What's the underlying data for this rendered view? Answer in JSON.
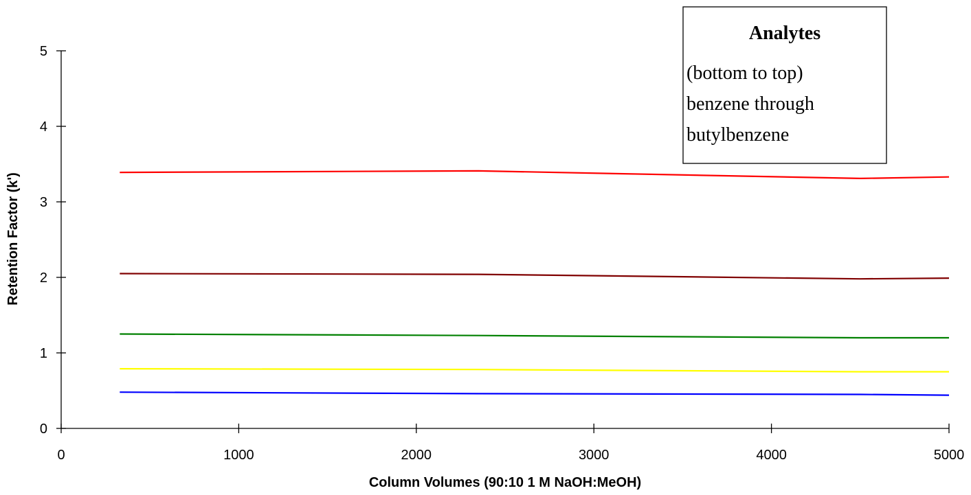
{
  "chart_data": {
    "type": "line",
    "xlabel": "Column Volumes (90:10 1 M NaOH:MeOH)",
    "ylabel": "Retention Factor (k')",
    "xlim": [
      0,
      5000
    ],
    "ylim": [
      0,
      5
    ],
    "x_ticks": [
      0,
      1000,
      2000,
      3000,
      4000,
      5000
    ],
    "y_ticks": [
      0,
      1,
      2,
      3,
      4,
      5
    ],
    "grid": false,
    "legend_placement": "top-right",
    "legend": {
      "title": "Analytes",
      "lines": [
        "(bottom to top)",
        "benzene through",
        "butylbenzene"
      ]
    },
    "series": [
      {
        "color": "#0000ff",
        "x": [
          330,
          2350,
          4500,
          5000
        ],
        "y": [
          0.48,
          0.46,
          0.45,
          0.44
        ]
      },
      {
        "color": "#ffff00",
        "x": [
          330,
          2350,
          4500,
          5000
        ],
        "y": [
          0.79,
          0.78,
          0.75,
          0.75
        ]
      },
      {
        "color": "#008000",
        "x": [
          330,
          2350,
          4500,
          5000
        ],
        "y": [
          1.25,
          1.23,
          1.2,
          1.2
        ]
      },
      {
        "color": "#800000",
        "x": [
          330,
          2350,
          4500,
          5000
        ],
        "y": [
          2.05,
          2.04,
          1.98,
          1.99
        ]
      },
      {
        "color": "#ff0000",
        "x": [
          330,
          2350,
          4500,
          5000
        ],
        "y": [
          3.39,
          3.41,
          3.31,
          3.33
        ]
      }
    ]
  }
}
